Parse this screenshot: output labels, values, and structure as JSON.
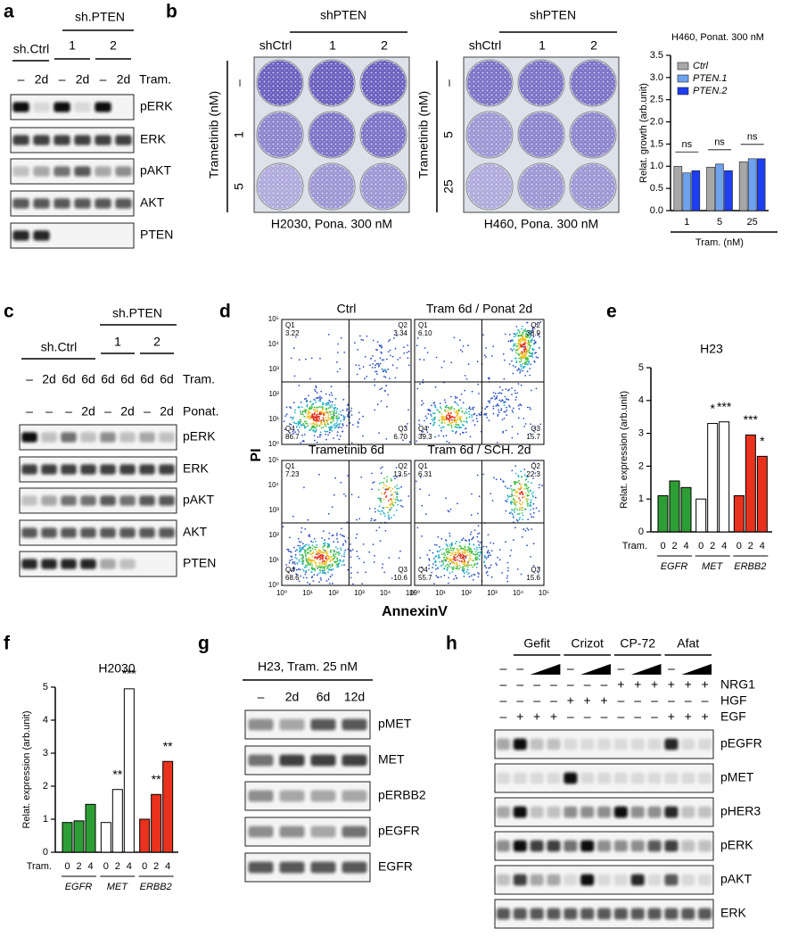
{
  "panel_labels": [
    "a",
    "b",
    "c",
    "d",
    "e",
    "f",
    "g",
    "h"
  ],
  "a": {
    "group_header": "sh.PTEN",
    "ctrl": "sh.Ctrl",
    "clones": [
      "1",
      "2"
    ],
    "lanes": [
      "–",
      "2d",
      "–",
      "2d",
      "–",
      "2d"
    ],
    "treatment": "Tram.",
    "rows": [
      "pERK",
      "ERK",
      "pAKT",
      "AKT",
      "PTEN"
    ]
  },
  "b_plates": [
    {
      "header": "shPTEN",
      "ctrl": "shCtrl",
      "clones": [
        "1",
        "2"
      ],
      "axis_label": "Trametinib (nM)",
      "rows": [
        "–",
        "1",
        "5"
      ],
      "caption": "H2030, Pona. 300 nM"
    },
    {
      "header": "shPTEN",
      "ctrl": "shCtrl",
      "clones": [
        "1",
        "2"
      ],
      "axis_label": "Trametinib (nM)",
      "rows": [
        "–",
        "5",
        "25"
      ],
      "caption": "H460, Pona. 300 nM"
    }
  ],
  "c": {
    "group_header": "sh.PTEN",
    "ctrl": "sh.Ctrl",
    "clones": [
      "1",
      "2"
    ],
    "tram_lanes": [
      "–",
      "2d",
      "6d",
      "6d",
      "6d",
      "6d",
      "6d",
      "6d"
    ],
    "tram": "Tram.",
    "ponat_lanes": [
      "–",
      "–",
      "–",
      "2d",
      "–",
      "2d",
      "–",
      "2d"
    ],
    "ponat": "Ponat.",
    "rows": [
      "pERK",
      "ERK",
      "pAKT",
      "AKT",
      "PTEN"
    ]
  },
  "d": {
    "x_label": "AnnexinV",
    "y_label": "PI",
    "ticks": [
      "10⁰",
      "10¹",
      "10²",
      "10³",
      "10⁴",
      "10⁵"
    ],
    "plots": [
      {
        "title": "Ctrl",
        "quadrants": [
          {
            "name": "Q1",
            "value": "3.22"
          },
          {
            "name": "Q2",
            "value": "3.34"
          },
          {
            "name": "Q3",
            "value": "6.70"
          },
          {
            "name": "Q4",
            "value": "86.7"
          }
        ]
      },
      {
        "title": "Tram 6d / Ponat 2d",
        "quadrants": [
          {
            "name": "Q1",
            "value": "6.10"
          },
          {
            "name": "Q2",
            "value": "38.9"
          },
          {
            "name": "Q3",
            "value": "15.7"
          },
          {
            "name": "Q4",
            "value": "39.3"
          }
        ]
      },
      {
        "title": "Trametinib 6d",
        "quadrants": [
          {
            "name": "Q1",
            "value": "7.23"
          },
          {
            "name": "Q2",
            "value": "13.5"
          },
          {
            "name": "Q3",
            "value": "10.6"
          },
          {
            "name": "Q4",
            "value": "68.6"
          }
        ]
      },
      {
        "title": "Tram 6d / SCH. 2d",
        "quadrants": [
          {
            "name": "Q1",
            "value": "6.31"
          },
          {
            "name": "Q2",
            "value": "22.3"
          },
          {
            "name": "Q3",
            "value": "15.6"
          },
          {
            "name": "Q4",
            "value": "55.7"
          }
        ]
      }
    ]
  },
  "g": {
    "title": "H23, Tram. 25 nM",
    "lanes": [
      "–",
      "2d",
      "6d",
      "12d"
    ],
    "rows": [
      "pMET",
      "MET",
      "pERBB2",
      "pEGFR",
      "EGFR"
    ]
  },
  "h": {
    "groups": [
      "Gefit",
      "Crizot",
      "CP-72",
      "Afat"
    ],
    "drug_row": [
      "–",
      "–",
      null,
      null,
      "–",
      null,
      null,
      "–",
      null,
      null,
      "–",
      null,
      null
    ],
    "conditions": [
      {
        "name": "NRG1",
        "marks": [
          "–",
          "–",
          "–",
          "–",
          "–",
          "–",
          "–",
          "+",
          "+",
          "+",
          "+",
          "+",
          "+"
        ]
      },
      {
        "name": "HGF",
        "marks": [
          "–",
          "–",
          "–",
          "–",
          "+",
          "+",
          "+",
          "–",
          "–",
          "–",
          "–",
          "–",
          "–"
        ]
      },
      {
        "name": "EGF",
        "marks": [
          "–",
          "+",
          "+",
          "+",
          "–",
          "–",
          "–",
          "–",
          "–",
          "–",
          "+",
          "+",
          "+"
        ]
      }
    ],
    "rows": [
      "pEGFR",
      "pMET",
      "pHER3",
      "pERK",
      "pAKT",
      "ERK"
    ]
  },
  "chart_data": [
    {
      "type": "bar",
      "title": "H460, Ponat. 300 nM",
      "y_label": "Relat. growth (arb.unit)",
      "x_label": "Tram. (nM)",
      "categories": [
        "1",
        "5",
        "25"
      ],
      "series": [
        {
          "name": "Ctrl",
          "color": "#a8a8a8",
          "values": [
            1.0,
            0.98,
            1.1
          ]
        },
        {
          "name": "PTEN.1",
          "color": "#6fa2ee",
          "values": [
            0.85,
            1.05,
            1.17
          ]
        },
        {
          "name": "PTEN.2",
          "color": "#1e3ef0",
          "values": [
            0.9,
            0.9,
            1.17
          ]
        }
      ],
      "annotations": [
        "ns",
        "ns",
        "ns"
      ],
      "legend": "upper left",
      "ylim": [
        0,
        3.5
      ],
      "yticks": [
        {
          "value": 0,
          "label": "0.0"
        },
        {
          "value": 0.5,
          "label": "0.5"
        },
        {
          "value": 1,
          "label": "1.0"
        },
        {
          "value": 1.5,
          "label": "1.5"
        },
        {
          "value": 2,
          "label": "2.0"
        },
        {
          "value": 2.5,
          "label": "2.5"
        },
        {
          "value": 3,
          "label": "3.0"
        },
        {
          "value": 3.5,
          "label": "3.5"
        }
      ]
    },
    {
      "type": "grouped_bar",
      "title": "H23",
      "y_label": "Relat. expression (arb.unit)",
      "x_label": "Tram.",
      "groups": [
        {
          "name": "EGFR",
          "color": "#2d9e35",
          "categories": [
            "0",
            "2",
            "4"
          ],
          "values": [
            1.1,
            1.55,
            1.35
          ],
          "annotations": [
            null,
            null,
            null
          ]
        },
        {
          "name": "MET",
          "color": "#ffffff",
          "categories": [
            "0",
            "2",
            "4"
          ],
          "values": [
            1.0,
            3.3,
            3.35
          ],
          "annotations": [
            null,
            "*",
            "***"
          ]
        },
        {
          "name": "ERBB2",
          "color": "#e8321e",
          "categories": [
            "0",
            "2",
            "4"
          ],
          "values": [
            1.1,
            2.95,
            2.3
          ],
          "annotations": [
            null,
            "***",
            "*"
          ]
        }
      ],
      "ylim": [
        0,
        5
      ],
      "yticks": [
        0,
        1,
        2,
        3,
        4,
        5
      ]
    },
    {
      "type": "grouped_bar",
      "title": "H2030",
      "y_label": "Relat. expression (arb.unit)",
      "x_label": "Tram.",
      "groups": [
        {
          "name": "EGFR",
          "color": "#2d9e35",
          "categories": [
            "0",
            "2",
            "4"
          ],
          "values": [
            0.9,
            0.95,
            1.45
          ],
          "annotations": [
            null,
            null,
            null
          ]
        },
        {
          "name": "MET",
          "color": "#ffffff",
          "categories": [
            "0",
            "2",
            "4"
          ],
          "values": [
            0.9,
            1.9,
            4.95
          ],
          "annotations": [
            null,
            "**",
            "***"
          ]
        },
        {
          "name": "ERBB2",
          "color": "#e8321e",
          "categories": [
            "0",
            "2",
            "4"
          ],
          "values": [
            1.0,
            1.75,
            2.75
          ],
          "annotations": [
            null,
            "**",
            "**"
          ]
        }
      ],
      "ylim": [
        0,
        5
      ],
      "yticks": [
        0,
        1,
        2,
        3,
        4,
        5
      ]
    }
  ]
}
